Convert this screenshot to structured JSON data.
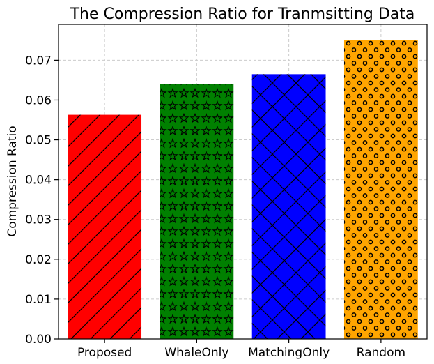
{
  "chart_data": {
    "type": "bar",
    "title": "The Compression Ratio for Tranmsitting Data",
    "xlabel": "",
    "ylabel": "Compression Ratio",
    "categories": [
      "Proposed",
      "WhaleOnly",
      "MatchingOnly",
      "Random"
    ],
    "values": [
      0.0563,
      0.064,
      0.0665,
      0.075
    ],
    "colors": [
      "#ff0000",
      "#008000",
      "#0000ff",
      "#ffa500"
    ],
    "hatches": [
      "diagonal",
      "stars",
      "crosshatch",
      "circles"
    ],
    "ylim": [
      0,
      0.079
    ],
    "yticks": [
      "0.00",
      "0.01",
      "0.02",
      "0.03",
      "0.04",
      "0.05",
      "0.06",
      "0.07"
    ],
    "ytick_values": [
      0,
      0.01,
      0.02,
      0.03,
      0.04,
      0.05,
      0.06,
      0.07
    ],
    "grid": true
  }
}
